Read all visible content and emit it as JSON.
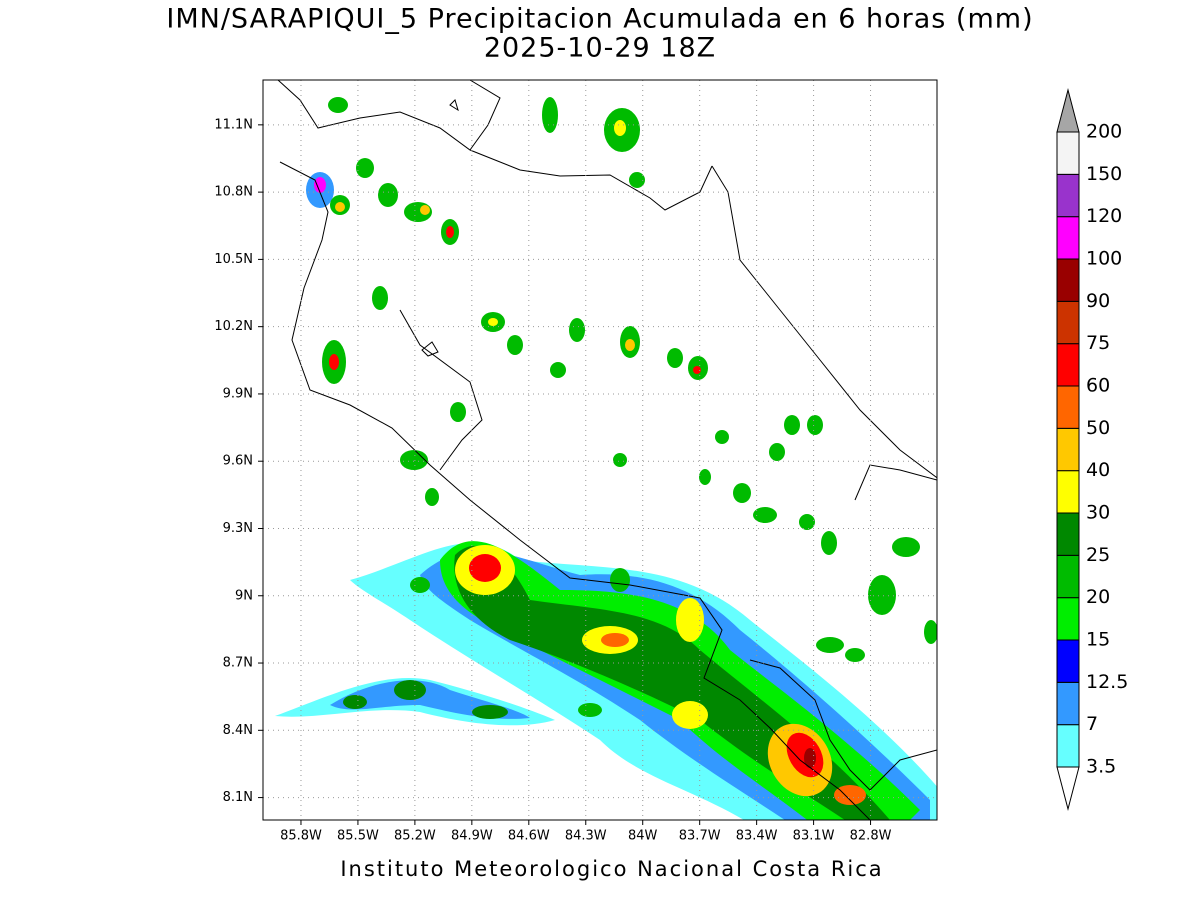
{
  "chart_data": {
    "type": "map",
    "title": "IMN/SARAPIQUI_5 Precipitacion Acumulada en 6 horas (mm)",
    "subtitle": "2025-10-29 18Z",
    "footer": "Instituto Meteorologico Nacional Costa Rica",
    "xlim": [
      -86.0,
      -82.45
    ],
    "ylim": [
      8.0,
      11.3
    ],
    "xticks": [
      {
        "value": -85.8,
        "label": "85.8W"
      },
      {
        "value": -85.5,
        "label": "85.5W"
      },
      {
        "value": -85.2,
        "label": "85.2W"
      },
      {
        "value": -84.9,
        "label": "84.9W"
      },
      {
        "value": -84.6,
        "label": "84.6W"
      },
      {
        "value": -84.3,
        "label": "84.3W"
      },
      {
        "value": -84.0,
        "label": "84W"
      },
      {
        "value": -83.7,
        "label": "83.7W"
      },
      {
        "value": -83.4,
        "label": "83.4W"
      },
      {
        "value": -83.1,
        "label": "83.1W"
      },
      {
        "value": -82.8,
        "label": "82.8W"
      }
    ],
    "yticks": [
      {
        "value": 8.1,
        "label": "8.1N"
      },
      {
        "value": 8.4,
        "label": "8.4N"
      },
      {
        "value": 8.7,
        "label": "8.7N"
      },
      {
        "value": 9.0,
        "label": "9N"
      },
      {
        "value": 9.3,
        "label": "9.3N"
      },
      {
        "value": 9.6,
        "label": "9.6N"
      },
      {
        "value": 9.9,
        "label": "9.9N"
      },
      {
        "value": 10.2,
        "label": "10.2N"
      },
      {
        "value": 10.5,
        "label": "10.5N"
      },
      {
        "value": 10.8,
        "label": "10.8N"
      },
      {
        "value": 11.1,
        "label": "11.1N"
      }
    ],
    "grid": true,
    "colorbar": {
      "levels": [
        3.5,
        7,
        12.5,
        15,
        20,
        25,
        30,
        40,
        50,
        60,
        75,
        90,
        100,
        120,
        150,
        200
      ],
      "colors": [
        "#66ffff",
        "#3399ff",
        "#0000ff",
        "#00ee00",
        "#00bb00",
        "#008800",
        "#ffff00",
        "#ffc800",
        "#ff6600",
        "#ff0000",
        "#cc3300",
        "#990000",
        "#ff00ff",
        "#9933cc",
        "#f4f4f4"
      ],
      "under_color": "#ffffff",
      "over_color": "#a6a6a6"
    }
  }
}
